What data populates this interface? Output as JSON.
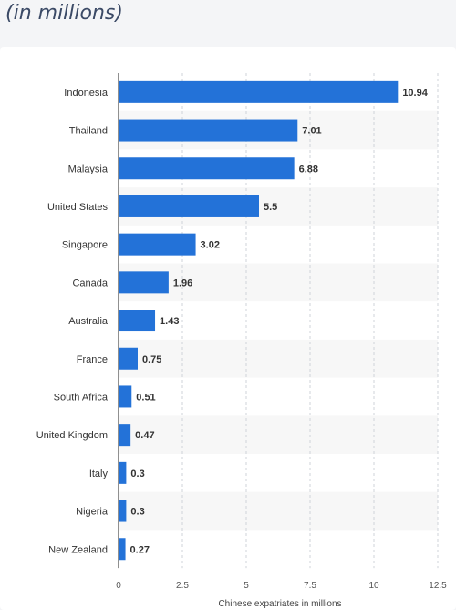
{
  "header": {
    "subtitle": "(in millions)"
  },
  "colors": {
    "bar": "#2372d8",
    "stripe": "#f7f7f7",
    "grid": "#cfd3d8",
    "axis": "#222222"
  },
  "chart_data": {
    "type": "bar",
    "orientation": "horizontal",
    "title": "",
    "subtitle": "(in millions)",
    "xlabel": "Chinese expatriates in millions",
    "ylabel": "",
    "xlim": [
      0,
      12.5
    ],
    "xticks": [
      0,
      2.5,
      5,
      7.5,
      10,
      12.5
    ],
    "xtick_labels": [
      "0",
      "2.5",
      "5",
      "7.5",
      "10",
      "12.5"
    ],
    "categories": [
      "Indonesia",
      "Thailand",
      "Malaysia",
      "United States",
      "Singapore",
      "Canada",
      "Australia",
      "France",
      "South Africa",
      "United Kingdom",
      "Italy",
      "Nigeria",
      "New Zealand"
    ],
    "values": [
      10.94,
      7.01,
      6.88,
      5.5,
      3.02,
      1.96,
      1.43,
      0.75,
      0.51,
      0.47,
      0.3,
      0.3,
      0.27
    ],
    "value_labels": [
      "10.94",
      "7.01",
      "6.88",
      "5.5",
      "3.02",
      "1.96",
      "1.43",
      "0.75",
      "0.51",
      "0.47",
      "0.3",
      "0.3",
      "0.27"
    ],
    "grid": true,
    "gridlines": "dashed vertical",
    "data_labels": true
  }
}
